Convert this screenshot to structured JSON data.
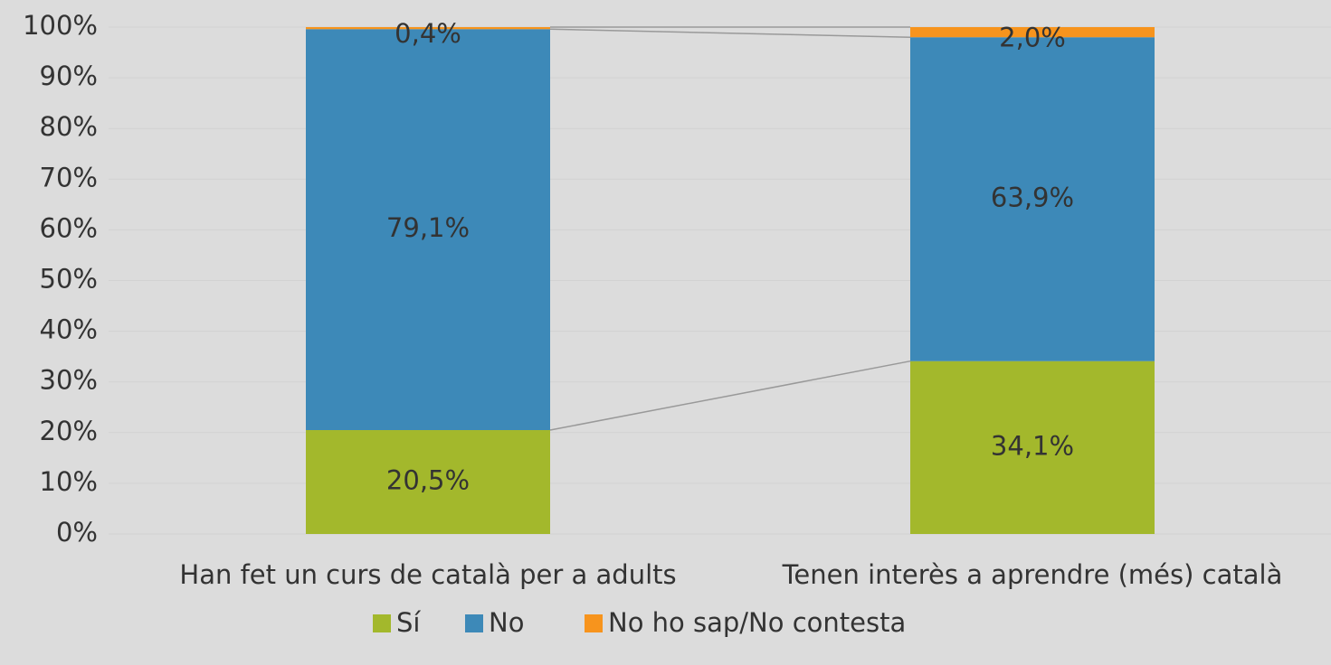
{
  "chart_data": {
    "type": "stacked_bar",
    "categories": [
      "Han fet un curs de català per a adults",
      "Tenen interès a aprendre (més) català"
    ],
    "series": [
      {
        "name": "Sí",
        "color": "#a3b82c",
        "values": [
          20.5,
          34.1
        ],
        "value_labels": [
          "20,5%",
          "34,1%"
        ]
      },
      {
        "name": "No",
        "color": "#3d89b8",
        "values": [
          79.1,
          63.9
        ],
        "value_labels": [
          "79,1%",
          "63,9%"
        ]
      },
      {
        "name": "No ho sap/No contesta",
        "color": "#f7941d",
        "values": [
          0.4,
          2.0
        ],
        "value_labels": [
          "0,4%",
          "2,0%"
        ]
      }
    ],
    "ylim": [
      0,
      100
    ],
    "yticks": [
      {
        "value": 0,
        "label": "0%"
      },
      {
        "value": 10,
        "label": "10%"
      },
      {
        "value": 20,
        "label": "20%"
      },
      {
        "value": 30,
        "label": "30%"
      },
      {
        "value": 40,
        "label": "40%"
      },
      {
        "value": 50,
        "label": "50%"
      },
      {
        "value": 60,
        "label": "60%"
      },
      {
        "value": 70,
        "label": "70%"
      },
      {
        "value": 80,
        "label": "80%"
      },
      {
        "value": 90,
        "label": "90%"
      },
      {
        "value": 100,
        "label": "100%"
      }
    ],
    "grid": true,
    "legend": "bottom"
  }
}
